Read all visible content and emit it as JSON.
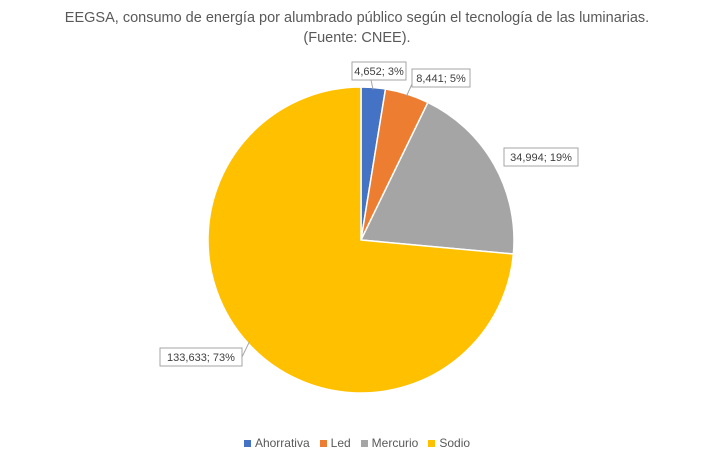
{
  "chart_data": {
    "type": "pie",
    "title_lines": [
      "EEGSA, consumo de energía por alumbrado público según el tecnología de las luminarias.",
      "(Fuente: CNEE)."
    ],
    "categories": [
      "Ahorrativa",
      "Led",
      "Mercurio",
      "Sodio"
    ],
    "values": [
      4652,
      8441,
      34994,
      133633
    ],
    "percent_labels": [
      "3%",
      "5%",
      "19%",
      "73%"
    ],
    "data_labels": [
      "4,652; 3%",
      "8,441; 5%",
      "34,994; 19%",
      "133,633; 73%"
    ],
    "colors": [
      "#4472C4",
      "#ED7D31",
      "#A5A5A5",
      "#FFC000"
    ],
    "legend_position": "bottom",
    "start_angle_deg": 0,
    "direction": "clockwise"
  }
}
